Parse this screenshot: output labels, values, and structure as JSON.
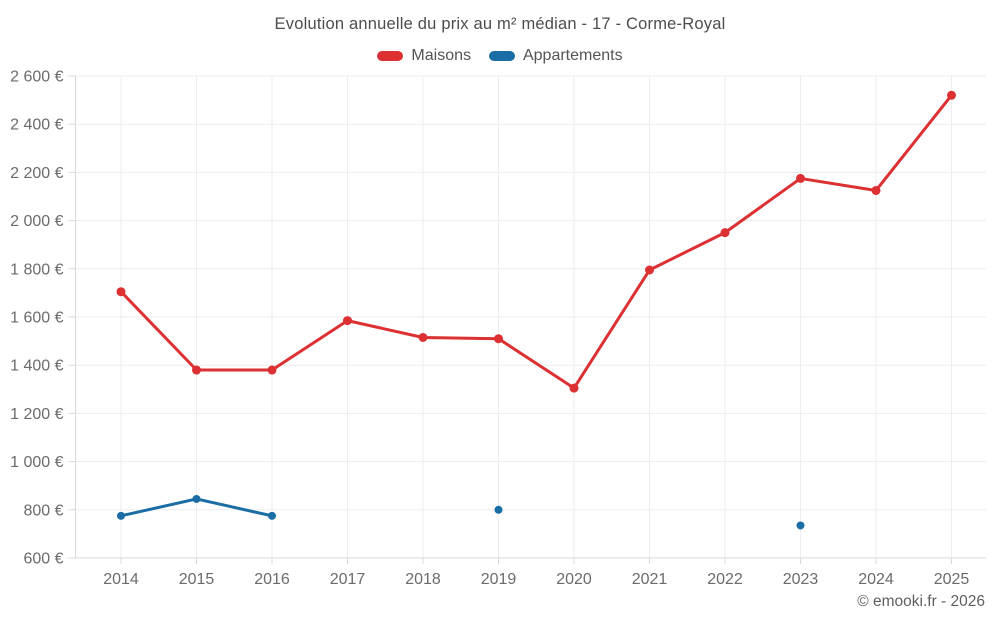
{
  "header": {
    "title": "Evolution annuelle du prix au m² médian - 17 - Corme-Royal",
    "legend": [
      {
        "label": "Maisons",
        "color": "#dc3032"
      },
      {
        "label": "Appartements",
        "color": "#1b6ea5"
      }
    ]
  },
  "footer": {
    "credit": "© emooki.fr - 2026"
  },
  "chart_data": {
    "type": "line",
    "title": "Evolution annuelle du prix au m² médian - 17 - Corme-Royal",
    "categories": [
      "2014",
      "2015",
      "2016",
      "2017",
      "2018",
      "2019",
      "2020",
      "2021",
      "2022",
      "2023",
      "2024",
      "2025"
    ],
    "series": [
      {
        "name": "Maisons",
        "color": "#dc3032",
        "values": [
          1705,
          1380,
          1380,
          1585,
          1515,
          1510,
          1305,
          1795,
          1950,
          2175,
          2125,
          2520
        ]
      },
      {
        "name": "Appartements",
        "color": "#1b6ea5",
        "values": [
          775,
          845,
          775,
          null,
          null,
          800,
          null,
          null,
          null,
          735,
          null,
          null
        ]
      }
    ],
    "xlabel": "",
    "ylabel": "",
    "ylim": [
      600,
      2600
    ],
    "ytick_values": [
      600,
      800,
      1000,
      1200,
      1400,
      1600,
      1800,
      2000,
      2200,
      2400,
      2600
    ],
    "ytick_labels": [
      "600 €",
      "800 €",
      "1 000 €",
      "1 200 €",
      "1 400 €",
      "1 600 €",
      "1 800 €",
      "2 000 €",
      "2 200 €",
      "2 400 €",
      "2 600 €"
    ],
    "grid": true,
    "legend_position": "top",
    "colors": {
      "grid": "#ededed",
      "axis": "#d8d8d8",
      "tick_text": "#6b6b6b"
    }
  }
}
